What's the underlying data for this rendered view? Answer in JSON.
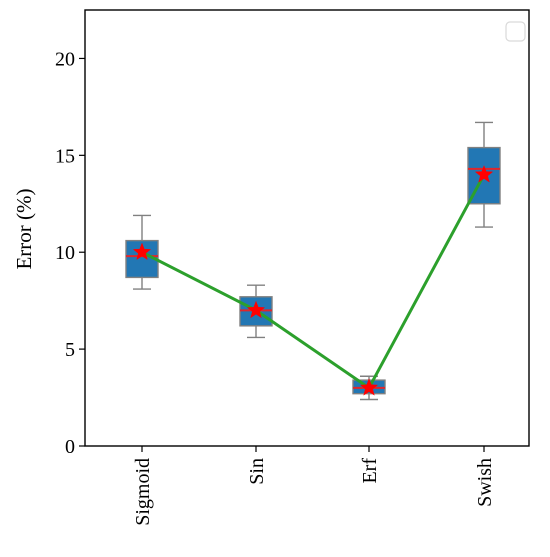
{
  "chart_data": {
    "type": "box",
    "title": "",
    "xlabel": "",
    "ylabel": "Error (%)",
    "categories": [
      "Sigmoid",
      "Sin",
      "Erf",
      "Swish"
    ],
    "ylim": [
      0,
      22.5
    ],
    "yticks": [
      0,
      5,
      10,
      15,
      20
    ],
    "boxes": [
      {
        "category": "Sigmoid",
        "whisker_low": 8.1,
        "q1": 8.7,
        "median": 9.8,
        "q3": 10.6,
        "whisker_high": 11.9,
        "mean": 10.0
      },
      {
        "category": "Sin",
        "whisker_low": 5.6,
        "q1": 6.2,
        "median": 7.0,
        "q3": 7.7,
        "whisker_high": 8.3,
        "mean": 7.0
      },
      {
        "category": "Erf",
        "whisker_low": 2.4,
        "q1": 2.7,
        "median": 3.0,
        "q3": 3.4,
        "whisker_high": 3.6,
        "mean": 3.0
      },
      {
        "category": "Swish",
        "whisker_low": 11.3,
        "q1": 12.5,
        "median": 14.3,
        "q3": 15.4,
        "whisker_high": 16.7,
        "mean": 14.0
      }
    ],
    "mean_line": {
      "values": [
        10.0,
        7.0,
        3.0,
        14.0
      ]
    },
    "legend": {
      "placement": "top-right",
      "entries": []
    },
    "grid": false
  },
  "colors": {
    "box_fill": "#2277b4",
    "box_edge": "#808080",
    "whisker": "#808080",
    "median": "#e0262b",
    "mean_marker": "#ff0000",
    "mean_line": "#2ca02c",
    "axis": "#000000",
    "legend_frame": "#d9d9d9"
  }
}
